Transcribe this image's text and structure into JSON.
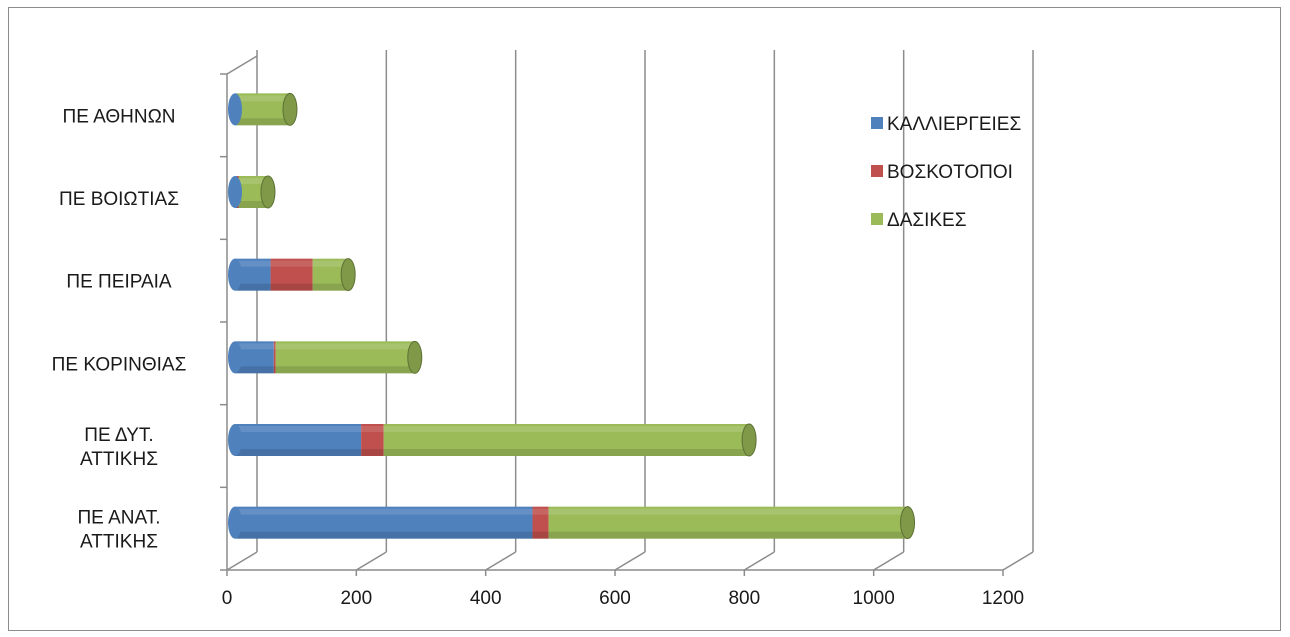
{
  "chart_data": {
    "type": "bar",
    "orientation": "horizontal",
    "stacked": true,
    "style": "3d-cylinder",
    "categories": [
      "ΠΕ ΑΝΑΤ. ΑΤΤΙΚΗΣ",
      "ΠΕ ΔΥΤ. ΑΤΤΙΚΗΣ",
      "ΠΕ ΚΟΡΙΝΘΙΑΣ",
      "ΠΕ ΠΕΙΡΑΙΑ",
      "ΠΕ ΒΟΙΩΤΙΑΣ",
      "ΠΕ ΑΘΗΝΩΝ"
    ],
    "category_label_lines": [
      [
        "ΠΕ ΑΝΑΤ.",
        "ΑΤΤΙΚΗΣ"
      ],
      [
        "ΠΕ ΔΥΤ.",
        "ΑΤΤΙΚΗΣ"
      ],
      [
        "ΠΕ ΚΟΡΙΝΘΙΑΣ"
      ],
      [
        "ΠΕ ΠΕΙΡΑΙΑ"
      ],
      [
        "ΠΕ ΒΟΙΩΤΙΑΣ"
      ],
      [
        "ΠΕ ΑΘΗΝΩΝ"
      ]
    ],
    "series": [
      {
        "name": "ΚΑΛΛΙΕΡΓΕΙΕΣ",
        "color": "#4f81bd",
        "values": [
          460,
          195,
          60,
          55,
          3,
          3
        ]
      },
      {
        "name": "ΒΟΣΚΟΤΟΠΟΙ",
        "color": "#c0504d",
        "values": [
          25,
          35,
          3,
          65,
          3,
          0
        ]
      },
      {
        "name": "ΔΑΣΙΚΕΣ",
        "color": "#9bbb59",
        "values": [
          555,
          565,
          215,
          55,
          45,
          82
        ]
      }
    ],
    "xlim": [
      0,
      1200
    ],
    "xticks": [
      0,
      200,
      400,
      600,
      800,
      1000,
      1200
    ],
    "grid": true,
    "legend_position": "right"
  }
}
